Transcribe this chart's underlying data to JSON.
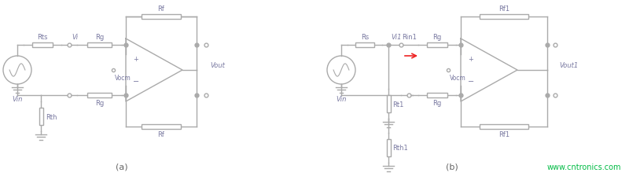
{
  "bg_color": "#ffffff",
  "line_color": "#aaaaaa",
  "label_color": "#7878a0",
  "red_color": "#ee2222",
  "green_color": "#00bb44",
  "caption_a": "(a)",
  "caption_b": "(b)",
  "website": "www.cntronics.com",
  "labels_a": {
    "Rts": "Rts",
    "Vi": "Vi",
    "Rg_top": "Rg",
    "Rg_bot": "Rg",
    "Rf_top": "Rf",
    "Rf_bot": "Rf",
    "Vocm": "Vocm",
    "Vout": "Vout",
    "Vin": "Vin",
    "Rth": "Rth"
  },
  "labels_b": {
    "Rs": "Rs",
    "Vi1": "Vi1",
    "Rin1": "Rin1",
    "Rg_top": "Rg",
    "Rg_bot": "Rg",
    "Rf1_top": "Rf1",
    "Rf1_bot": "Rf1",
    "Vocm": "Vocm",
    "Vout1": "Vout1",
    "Vin": "Vin",
    "Rt1": "Rt1",
    "Rth1": "Rth1"
  }
}
